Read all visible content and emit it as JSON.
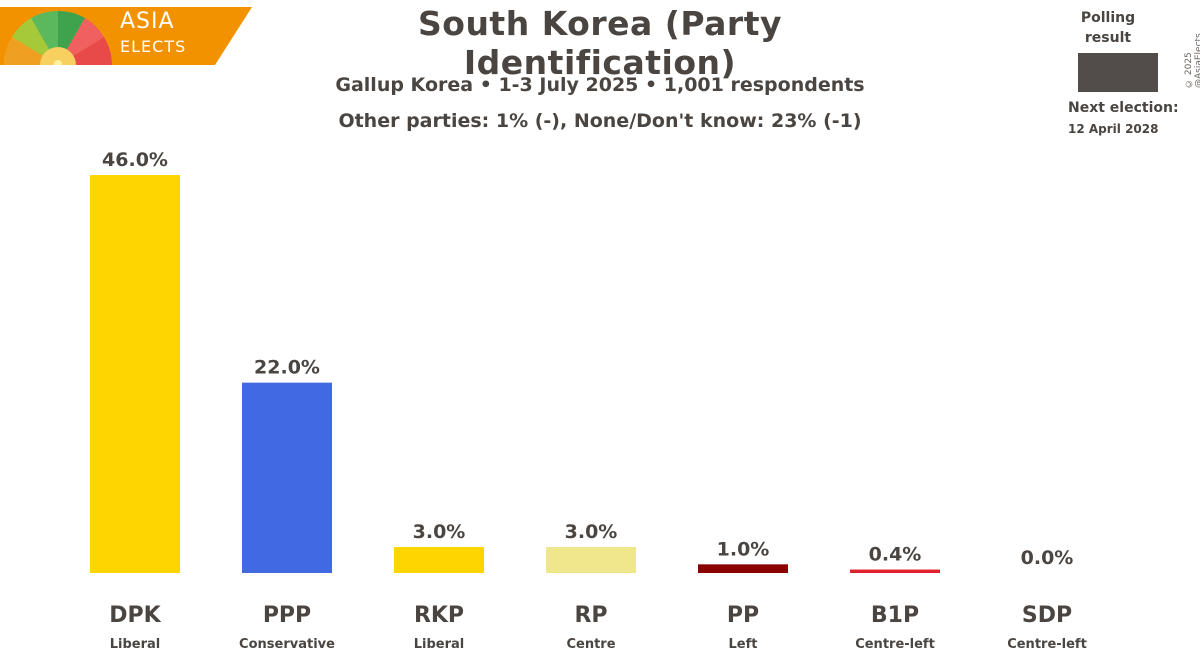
{
  "brand": {
    "line1": "ASIA",
    "line2": "ELECTS"
  },
  "legend": {
    "label": "Polling result",
    "swatch_color": "#524d4a"
  },
  "next_election": {
    "label": "Next election:",
    "date": "12 April 2028"
  },
  "copyright": "© 2025 @AsiaElects",
  "chart_data": {
    "type": "bar",
    "title": "South Korea (Party Identification)",
    "subtitle": "Gallup Korea • 1-3 July 2025 • 1,001 respondents",
    "note": "Other parties: 1% (-), None/Don't know: 23% (-1)",
    "categories": [
      "DPK",
      "PPP",
      "RKP",
      "RP",
      "PP",
      "B1P",
      "SDP"
    ],
    "ideologies": [
      "Liberal",
      "Conservative",
      "Liberal",
      "Centre",
      "Left",
      "Centre-left",
      "Centre-left"
    ],
    "values": [
      46.0,
      22.0,
      3.0,
      3.0,
      1.0,
      0.4,
      0.0
    ],
    "value_labels": [
      "46.0%",
      "22.0%",
      "3.0%",
      "3.0%",
      "1.0%",
      "0.4%",
      "0.0%"
    ],
    "colors": [
      "#ffd500",
      "#4169e1",
      "#ffd500",
      "#f0e68c",
      "#8b0000",
      "#e0202c",
      "#e0202c"
    ],
    "ylim": [
      0,
      46
    ]
  }
}
